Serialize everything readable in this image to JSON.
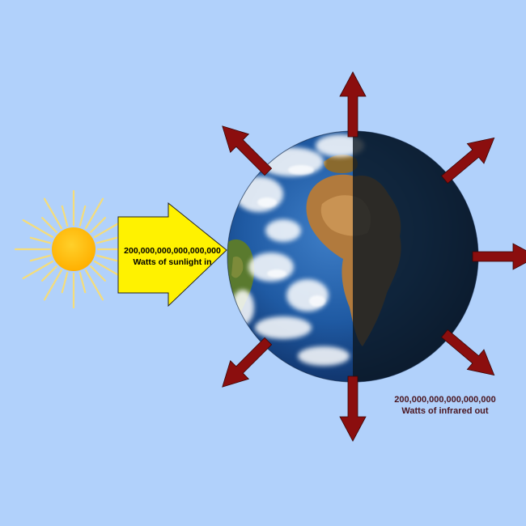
{
  "colors": {
    "background": "#b1d1fb",
    "sun_core": "#ffbf00",
    "sun_rays": "#f5dd7a",
    "sunlight_arrow": "#fff200",
    "infrared_arrow": "#8b0e0e",
    "infrared_label": "#4a1620"
  },
  "sunlight_in": {
    "amount": "200,000,000,000,000,000",
    "caption": "Watts of sunlight in"
  },
  "infrared_out": {
    "amount": "200,000,000,000,000,000",
    "caption": "Watts of infrared out"
  }
}
